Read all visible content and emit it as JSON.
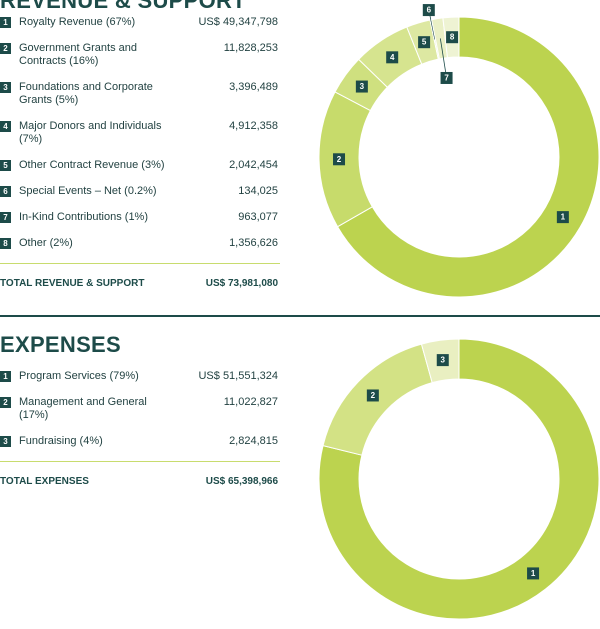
{
  "chart_data": [
    {
      "type": "donut",
      "title": "REVENUE & SUPPORT",
      "keys": [
        "1",
        "2",
        "3",
        "4",
        "5",
        "6",
        "7",
        "8"
      ],
      "categories": [
        "Royalty Revenue (67%)",
        "Government Grants and Contracts (16%)",
        "Foundations and Corporate Grants (5%)",
        "Major Donors and Individuals (7%)",
        "Other Contract Revenue (3%)",
        "Special Events – Net (0.2%)",
        "In-Kind Contributions (1%)",
        "Other (2%)"
      ],
      "values": [
        49347798,
        11828253,
        3396489,
        4912358,
        2042454,
        134025,
        963077,
        1356626
      ],
      "value_labels": [
        "US$ 49,347,798",
        "11,828,253",
        "3,396,489",
        "4,912,358",
        "2,042,454",
        "134,025",
        "963,077",
        "1,356,626"
      ],
      "colors": [
        "#bcd34f",
        "#c7db6b",
        "#cfe07f",
        "#d6e48f",
        "#dde8a2",
        "#e5edb8",
        "#eaf0c6",
        "#eef3d3"
      ],
      "total_label": "TOTAL REVENUE & SUPPORT",
      "total": 73981080,
      "total_value_label": "US$ 73,981,080"
    },
    {
      "type": "donut",
      "title": "EXPENSES",
      "keys": [
        "1",
        "2",
        "3"
      ],
      "categories": [
        "Program Services (79%)",
        "Management and General (17%)",
        "Fundraising (4%)"
      ],
      "values": [
        51551324,
        11022827,
        2824815
      ],
      "value_labels": [
        "US$ 51,551,324",
        "11,022,827",
        "2,824,815"
      ],
      "colors": [
        "#bcd34f",
        "#d3e285",
        "#e9efc1"
      ],
      "total_label": "TOTAL EXPENSES",
      "total": 65398966,
      "total_value_label": "US$ 65,398,966"
    }
  ]
}
